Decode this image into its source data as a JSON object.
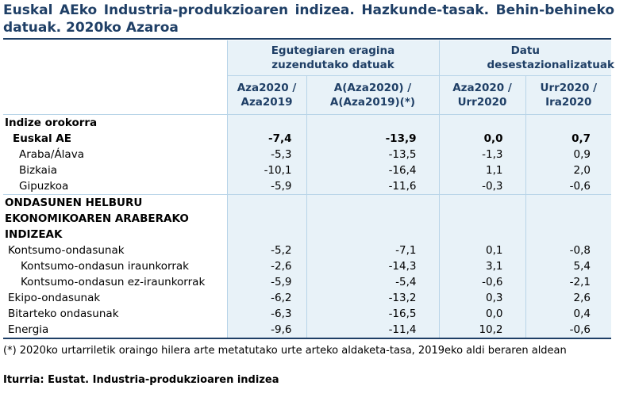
{
  "title": "Euskal AEko Industria-produkzioaren indizea. Hazkunde-tasak. Behin-behineko datuak. 2020ko Azaroa",
  "header": {
    "group1": "Egutegiaren eragina zuzendutako datuak",
    "group2": "Datu desestazionalizatuak",
    "col1": "Aza2020 / Aza2019",
    "col2": "A(Aza2020) / A(Aza2019)(*)",
    "col3": "Aza2020 / Urr2020",
    "col4": "Urr2020 / Ira2020"
  },
  "section1": "Indize orokorra",
  "rows1": [
    {
      "label": "Euskal AE",
      "v1": "-7,4",
      "v2": "-13,9",
      "v3": "0,0",
      "v4": "0,7"
    },
    {
      "label": "Araba/Álava",
      "v1": "-5,3",
      "v2": "-13,5",
      "v3": "-1,3",
      "v4": "0,9"
    },
    {
      "label": "Bizkaia",
      "v1": "-10,1",
      "v2": "-16,4",
      "v3": "1,1",
      "v4": "2,0"
    },
    {
      "label": "Gipuzkoa",
      "v1": "-5,9",
      "v2": "-11,6",
      "v3": "-0,3",
      "v4": "-0,6"
    }
  ],
  "section2": [
    "ONDASUNEN HELBURU",
    "EKONOMIKOAREN ARABERAKO",
    "INDIZEAK"
  ],
  "rows2": [
    {
      "label": "Kontsumo-ondasunak",
      "v1": "-5,2",
      "v2": "-7,1",
      "v3": "0,1",
      "v4": "-0,8"
    },
    {
      "label": "Kontsumo-ondasun iraunkorrak",
      "v1": "-2,6",
      "v2": "-14,3",
      "v3": "3,1",
      "v4": "5,4"
    },
    {
      "label": "Kontsumo-ondasun ez-iraunkorrak",
      "v1": "-5,9",
      "v2": "-5,4",
      "v3": "-0,6",
      "v4": "-2,1"
    },
    {
      "label": "Ekipo-ondasunak",
      "v1": "-6,2",
      "v2": "-13,2",
      "v3": "0,3",
      "v4": "2,6"
    },
    {
      "label": "Bitarteko ondasunak",
      "v1": "-6,3",
      "v2": "-16,5",
      "v3": "0,0",
      "v4": "0,4"
    },
    {
      "label": "Energia",
      "v1": "-9,6",
      "v2": "-11,4",
      "v3": "10,2",
      "v4": "-0,6"
    }
  ],
  "footnote": "(*) 2020ko urtarriletik oraingo hilera arte metatutako urte arteko aldaketa-tasa, 2019eko aldi beraren aldean",
  "source": "Iturria: Eustat. Industria-produkzioaren indizea"
}
